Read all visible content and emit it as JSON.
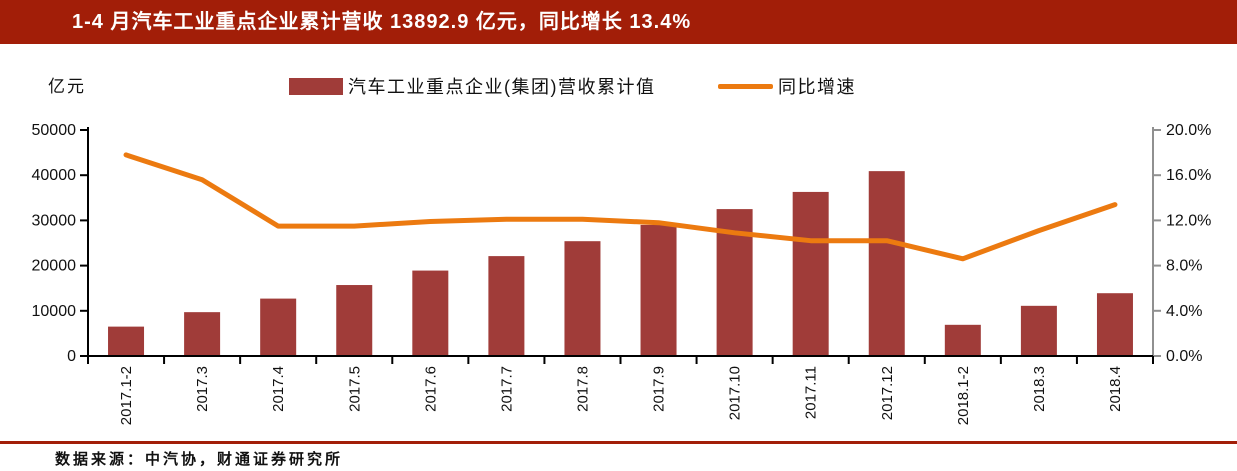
{
  "header": {
    "title": "1-4 月汽车工业重点企业累计营收 13892.9 亿元，同比增长 13.4%"
  },
  "axis_unit_label": "亿元",
  "legend": {
    "bar_label": "汽车工业重点企业(集团)营收累计值",
    "line_label": "同比增速"
  },
  "footer": {
    "source": "数据来源：中汽协，财通证券研究所"
  },
  "colors": {
    "header_bg": "#A21E08",
    "bar": "#A03C39",
    "line": "#EC7A10",
    "left_axis": "#000000",
    "right_axis": "#909090",
    "divider": "#A21E08"
  },
  "chart_data": {
    "type": "bar",
    "categories": [
      "2017.1-2",
      "2017.3",
      "2017.4",
      "2017.5",
      "2017.6",
      "2017.7",
      "2017.8",
      "2017.9",
      "2017.10",
      "2017.11",
      "2017.12",
      "2018.1-2",
      "2018.3",
      "2018.4"
    ],
    "series": [
      {
        "name": "汽车工业重点企业(集团)营收累计值",
        "type": "bar",
        "axis": "left",
        "values": [
          6500,
          9700,
          12700,
          15700,
          18900,
          22100,
          25400,
          29000,
          32500,
          36300,
          40900,
          6900,
          11100,
          13892.9
        ]
      },
      {
        "name": "同比增速",
        "type": "line",
        "axis": "right",
        "values": [
          17.8,
          15.6,
          11.5,
          11.5,
          11.9,
          12.1,
          12.1,
          11.8,
          10.9,
          10.2,
          10.2,
          8.6,
          11.1,
          13.4
        ]
      }
    ],
    "title": "1-4 月汽车工业重点企业累计营收 13892.9 亿元，同比增长 13.4%",
    "xlabel": "",
    "ylabel_left": "亿元",
    "ylabel_right": "%",
    "left_axis": {
      "min": 0,
      "max": 50000,
      "step": 10000,
      "tick_labels": [
        "0",
        "10000",
        "20000",
        "30000",
        "40000",
        "50000"
      ]
    },
    "right_axis": {
      "min": 0,
      "max": 20,
      "step": 4,
      "tick_labels": [
        "0.0%",
        "4.0%",
        "8.0%",
        "12.0%",
        "16.0%",
        "20.0%"
      ]
    },
    "grid": false,
    "legend_position": "top"
  }
}
